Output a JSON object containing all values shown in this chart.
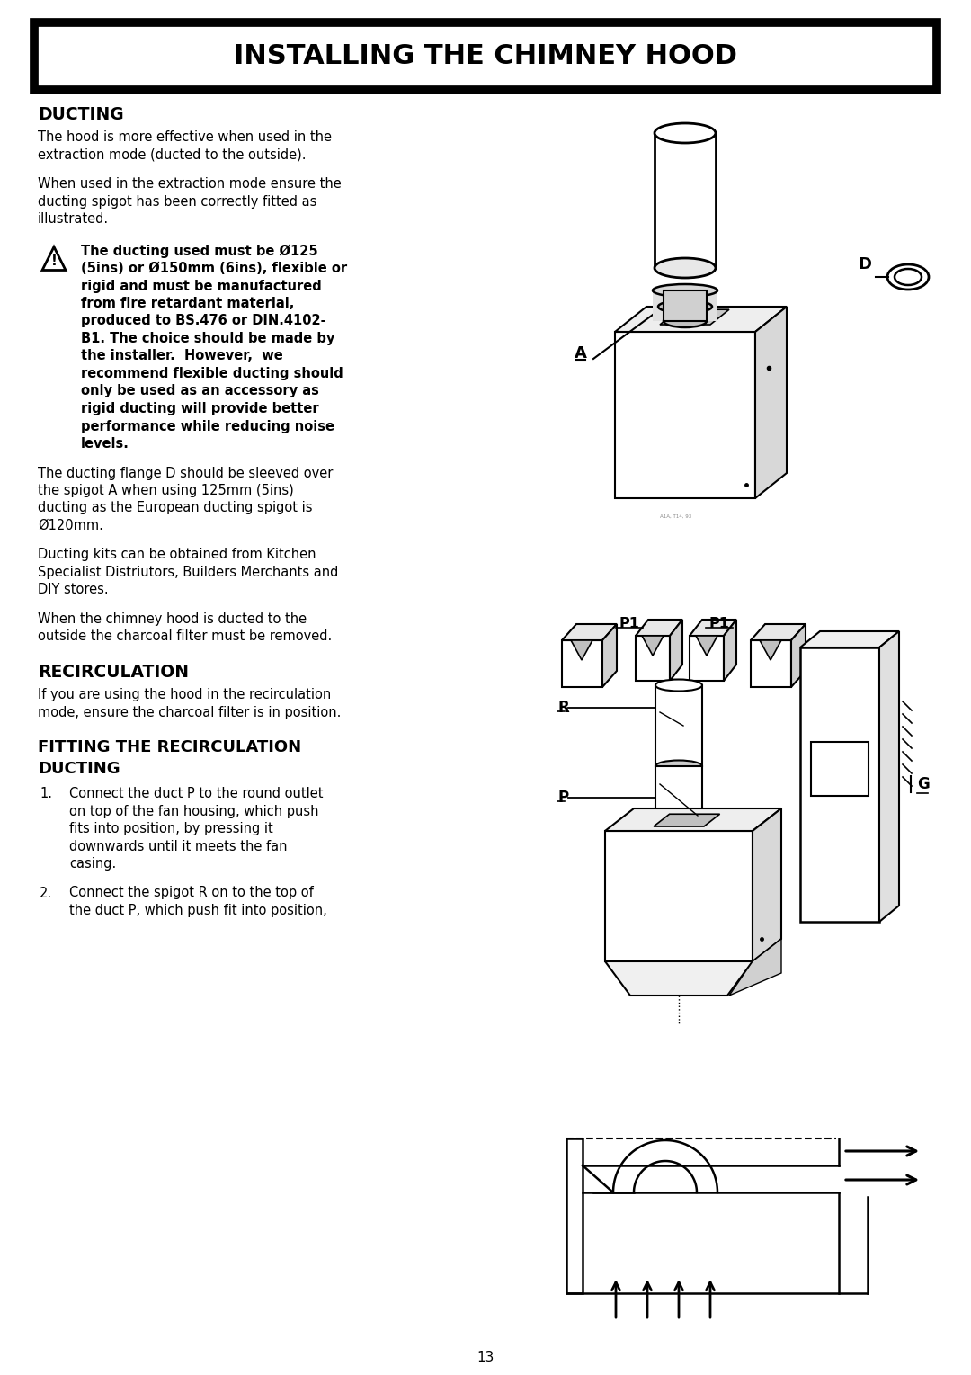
{
  "title": "INSTALLING THE CHIMNEY HOOD",
  "background_color": "#ffffff",
  "page_number": "13",
  "section_ducting_title": "DUCTING",
  "para_ducting_1": "The hood is more effective when used in the\nextraction mode (ducted to the outside).",
  "para_ducting_2": "When used in the extraction mode ensure the\nducting spigot has been correctly fitted as\nillustrated.",
  "warning_text_lines": [
    "The ducting used must be Ø125",
    "(5ins) or Ø150mm (6ins), flexible or",
    "rigid and must be manufactured",
    "from fire retardant material,",
    "produced to BS.476 or DIN.4102-",
    "B1. The choice should be made by",
    "the installer.  However,  we",
    "recommend flexible ducting should",
    "only be used as an accessory as",
    "rigid ducting will provide better",
    "performance while reducing noise",
    "levels."
  ],
  "para_ducting_3": "The ducting flange D should be sleeved over\nthe spigot A when using 125mm (5ins)\nducting as the European ducting spigot is\nØ120mm.",
  "para_ducting_4": "Ducting kits can be obtained from Kitchen\nSpecialist Distriutors, Builders Merchants and\nDIY stores.",
  "para_ducting_5": "When the chimney hood is ducted to the\noutside the charcoal filter must be removed.",
  "section_recirc_title": "RECIRCULATION",
  "para_recirc": "If you are using the hood in the recirculation\nmode, ensure the charcoal filter is in position.",
  "section_fitting_title_1": "FITTING THE RECIRCULATION",
  "section_fitting_title_2": "DUCTING",
  "para_fitting_1_lines": [
    "Connect the duct P to the round outlet",
    "on top of the fan housing, which push",
    "fits into position, by pressing it",
    "downwards until it meets the fan",
    "casing."
  ],
  "para_fitting_2_lines": [
    "Connect the spigot R on to the top of",
    "the duct P, which push fit into position,"
  ]
}
